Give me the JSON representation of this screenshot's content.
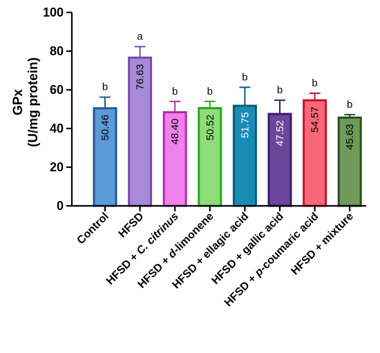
{
  "chart_data": {
    "type": "bar",
    "ylabel_line1": "GPx",
    "ylabel_line2": "(U/mg protein)",
    "ylim": [
      0,
      100
    ],
    "yticks": [
      "0",
      "20",
      "40",
      "60",
      "80",
      "100"
    ],
    "categories": [
      {
        "parts": [
          {
            "t": "Control"
          }
        ]
      },
      {
        "parts": [
          {
            "t": "HFSD"
          }
        ]
      },
      {
        "parts": [
          {
            "t": "HFSD + "
          },
          {
            "t": "C. citrinus",
            "i": true
          }
        ]
      },
      {
        "parts": [
          {
            "t": "HFSD + "
          },
          {
            "t": "d",
            "i": true
          },
          {
            "t": "-limonene"
          }
        ]
      },
      {
        "parts": [
          {
            "t": "HFSD + ellagic acid"
          }
        ]
      },
      {
        "parts": [
          {
            "t": "HFSD + gallic acid"
          }
        ]
      },
      {
        "parts": [
          {
            "t": "HFSD + "
          },
          {
            "t": "p",
            "i": true
          },
          {
            "t": "-coumaric acid"
          }
        ]
      },
      {
        "parts": [
          {
            "t": "HFSD + mixture"
          }
        ]
      }
    ],
    "values": [
      50.46,
      76.63,
      48.4,
      50.52,
      51.75,
      47.52,
      54.57,
      45.63
    ],
    "value_labels": [
      "50.46",
      "76.63",
      "48.40",
      "50.52",
      "51.75",
      "47.52",
      "54.57",
      "45.63"
    ],
    "error_upper": [
      56.2,
      82.3,
      54.0,
      54.0,
      61.3,
      54.6,
      58.2,
      47.2
    ],
    "significance": [
      "b",
      "a",
      "b",
      "b",
      "b",
      "b",
      "b",
      "b"
    ],
    "fill_colors": [
      "#5b9bd8",
      "#a78bd8",
      "#f080ec",
      "#8fdc7a",
      "#1a8cb4",
      "#6b469a",
      "#f86878",
      "#6e9a5a"
    ],
    "edge_colors": [
      "#1f5a8c",
      "#7a4aa8",
      "#b42aa8",
      "#22a81a",
      "#0b5a7a",
      "#3a1a6a",
      "#c8102e",
      "#2e4a22"
    ],
    "value_label_colors": [
      "#000000",
      "#000000",
      "#000000",
      "#000000",
      "#ffffff",
      "#ffffff",
      "#000000",
      "#000000"
    ],
    "grid": false,
    "legend": "none"
  }
}
